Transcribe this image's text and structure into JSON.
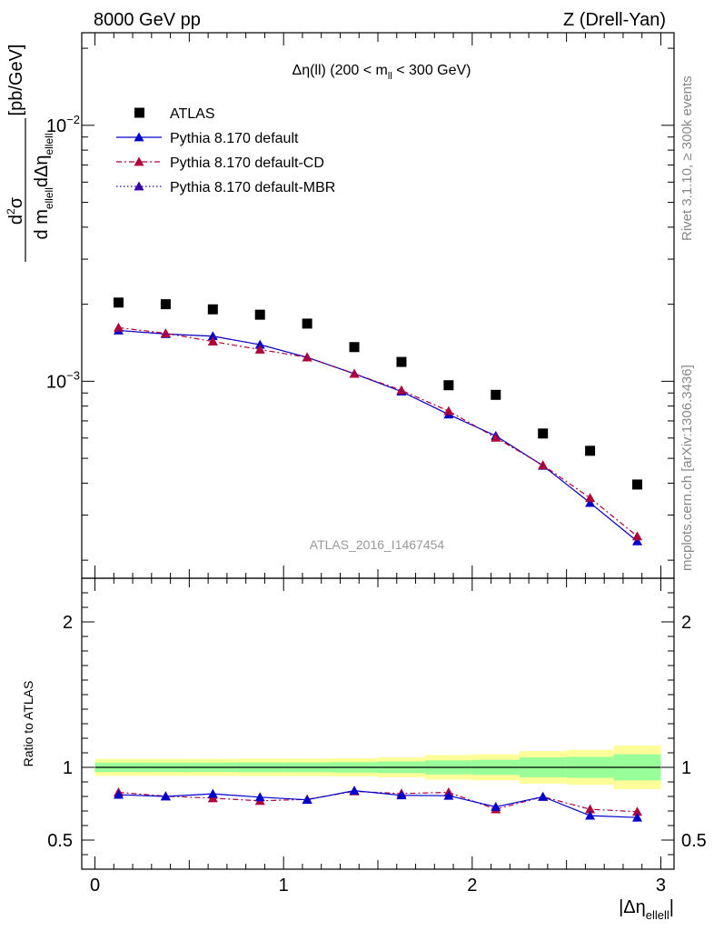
{
  "header": {
    "left": "8000 GeV pp",
    "right": "Z (Drell-Yan)"
  },
  "side_labels": {
    "rivet": "Rivet 3.1.10, ≥ 300k events",
    "mcplots": "mcplots.cern.ch [arXiv:1306.3436]"
  },
  "watermark": "ATLAS_2016_I1467454",
  "chart_data": [
    {
      "type": "scatter",
      "title_parts": [
        "Δη(ll) (200 < m",
        "ll",
        " < 300 GeV)"
      ],
      "ylabel_parts": [
        "d",
        "2",
        "σ",
        "d m",
        "ellell",
        "dΔη",
        "ellell",
        "[pb/GeV]"
      ],
      "yscale": "log",
      "ylim": [
        0.00017,
        0.023
      ],
      "xlim": [
        -0.07,
        3.07
      ],
      "y_ticks": [
        {
          "value": 0.001,
          "mantissa": "10",
          "exp": "−3"
        },
        {
          "value": 0.01,
          "mantissa": "10",
          "exp": "−2"
        }
      ],
      "x": [
        0.125,
        0.375,
        0.625,
        0.875,
        1.125,
        1.375,
        1.625,
        1.875,
        2.125,
        2.375,
        2.625,
        2.875
      ],
      "legend_position": "top-left",
      "series": [
        {
          "name": "ATLAS",
          "style": "data",
          "color": "#000000",
          "values": [
            0.00203,
            0.002,
            0.00191,
            0.00182,
            0.00168,
            0.00136,
            0.00119,
            0.000965,
            0.000885,
            0.000625,
            0.000535,
            0.000395
          ]
        },
        {
          "name": "Pythia 8.170 default",
          "style": "solid",
          "color": "#0000cc",
          "values": [
            0.00158,
            0.00153,
            0.0015,
            0.00139,
            0.00124,
            0.00107,
            0.000912,
            0.000742,
            0.000612,
            0.000468,
            0.000335,
            0.000237
          ]
        },
        {
          "name": "Pythia 8.170 default-CD",
          "style": "dashdot",
          "color": "#b0003a",
          "values": [
            0.00162,
            0.00154,
            0.00143,
            0.00133,
            0.00124,
            0.00107,
            0.000922,
            0.000765,
            0.000602,
            0.00047,
            0.00035,
            0.000248
          ]
        },
        {
          "name": "Pythia 8.170 default-MBR",
          "style": "dotted",
          "color": "#3300aa",
          "values": [
            0.00158,
            0.00153,
            0.0015,
            0.00139,
            0.00124,
            0.00107,
            0.000912,
            0.000742,
            0.000612,
            0.000468,
            0.000335,
            0.000237
          ]
        }
      ]
    },
    {
      "type": "line",
      "ylabel": "Ratio to ATLAS",
      "xlabel_parts": [
        "|Δη",
        "ellell",
        "|"
      ],
      "xlim": [
        -0.07,
        3.07
      ],
      "ylim": [
        0.3,
        2.3
      ],
      "x_ticks": [
        0,
        1,
        2,
        3
      ],
      "x_tick_labels": [
        "0",
        "1",
        "2",
        "3"
      ],
      "y_ticks": [
        0.5,
        1,
        2
      ],
      "y_tick_labels": [
        "0.5",
        "1",
        "2"
      ],
      "bin_edges": [
        0,
        0.25,
        0.5,
        0.75,
        1.0,
        1.25,
        1.5,
        1.75,
        2.0,
        2.25,
        2.5,
        2.75,
        3.0
      ],
      "band_yellow_halfwidth": [
        0.058,
        0.058,
        0.058,
        0.06,
        0.06,
        0.062,
        0.068,
        0.085,
        0.09,
        0.112,
        0.12,
        0.15
      ],
      "band_green_halfwidth": [
        0.032,
        0.032,
        0.032,
        0.034,
        0.034,
        0.036,
        0.04,
        0.048,
        0.052,
        0.068,
        0.072,
        0.09
      ],
      "x": [
        0.125,
        0.375,
        0.625,
        0.875,
        1.125,
        1.375,
        1.625,
        1.875,
        2.125,
        2.375,
        2.625,
        2.875
      ],
      "series": [
        {
          "name": "Pythia 8.170 default",
          "color": "#0000cc",
          "style": "solid",
          "values": [
            0.812,
            0.8,
            0.818,
            0.795,
            0.777,
            0.84,
            0.808,
            0.805,
            0.728,
            0.798,
            0.668,
            0.655
          ],
          "errors": [
            0.01,
            0.01,
            0.01,
            0.01,
            0.01,
            0.01,
            0.01,
            0.01,
            0.012,
            0.012,
            0.015,
            0.018
          ]
        },
        {
          "name": "Pythia 8.170 default-CD",
          "color": "#b0003a",
          "style": "dashdot",
          "values": [
            0.828,
            0.802,
            0.788,
            0.77,
            0.78,
            0.835,
            0.82,
            0.828,
            0.712,
            0.798,
            0.712,
            0.695
          ],
          "errors": [
            0.01,
            0.01,
            0.01,
            0.01,
            0.01,
            0.01,
            0.01,
            0.01,
            0.012,
            0.012,
            0.015,
            0.018
          ]
        }
      ]
    }
  ]
}
